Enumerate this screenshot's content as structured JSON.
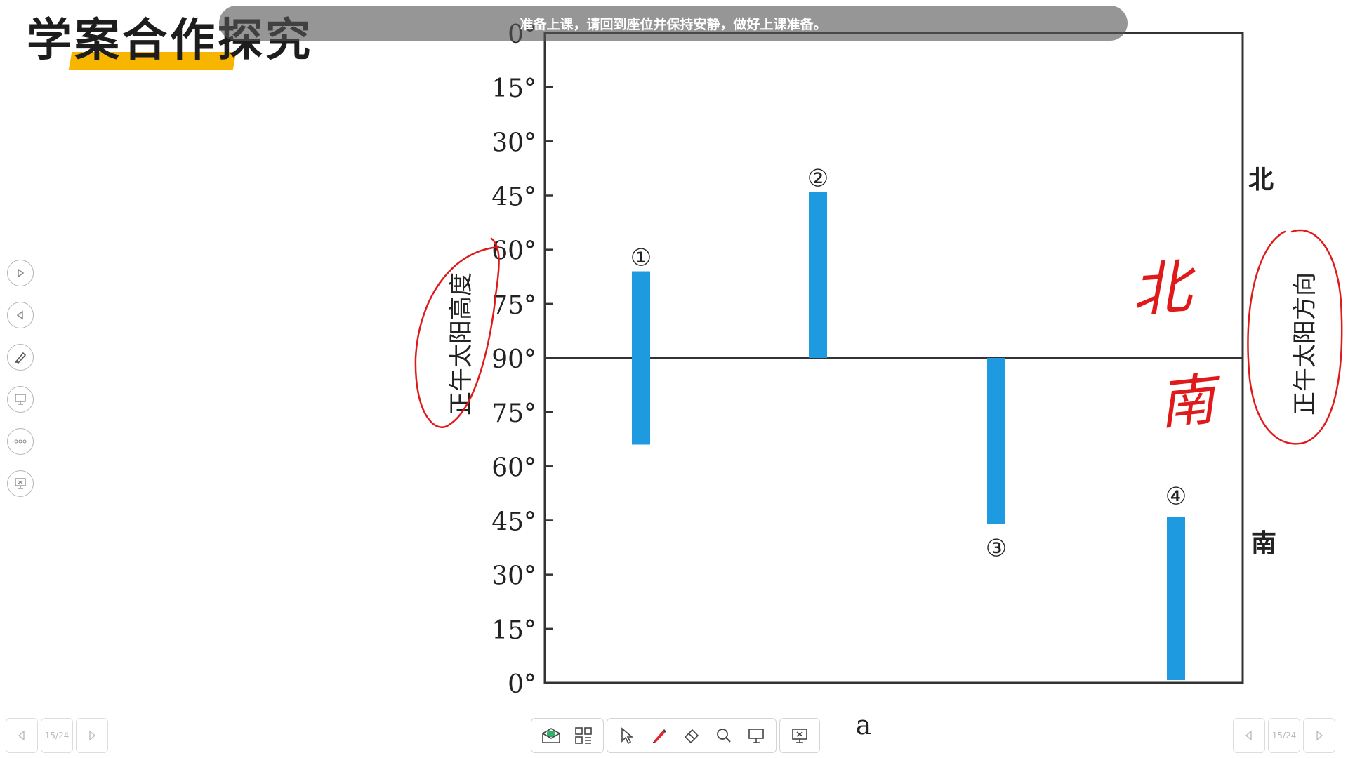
{
  "slide": {
    "title": "学案合作探究"
  },
  "banner": {
    "text": "准备上课，请回到座位并保持安静，做好上课准备。"
  },
  "chart_data": {
    "type": "bar",
    "caption": "a",
    "ylabel_left": "正午太阳高度",
    "ylabel_right": "正午太阳方向",
    "direction_labels": {
      "top": "北",
      "bottom": "南"
    },
    "y_axis_top": [
      "0°",
      "15°",
      "30°",
      "45°",
      "60°",
      "75°",
      "90°"
    ],
    "y_axis_bottom": [
      "75°",
      "60°",
      "45°",
      "30°",
      "15°",
      "0°"
    ],
    "x_positions": [
      1,
      2,
      3,
      4
    ],
    "bars": [
      {
        "label": "①",
        "north_altitude": 66,
        "south_altitude": 66
      },
      {
        "label": "②",
        "north_altitude": 44,
        "south_altitude": null
      },
      {
        "label": "③",
        "north_altitude": null,
        "south_altitude": 44
      },
      {
        "label": "④",
        "north_altitude": null,
        "south_altitude": 46,
        "south_base": 0
      }
    ],
    "annotations": {
      "handwritten_north": "北",
      "handwritten_south": "南"
    },
    "colors": {
      "bar": "#1e9be0",
      "ink": "#e01a1a",
      "axis": "#333333"
    }
  },
  "pager": {
    "left_page": "15/24",
    "right_page": "15/24"
  },
  "left_rail": {
    "icons": [
      "play-icon",
      "back-icon",
      "pen-icon",
      "screen-draw-icon",
      "more-icon",
      "projector-icon"
    ]
  },
  "toolbar": {
    "icons": [
      "message-icon",
      "grid-icon",
      "cursor-icon",
      "pen-icon",
      "eraser-icon",
      "magnifier-icon",
      "board-icon",
      "exit-projection-icon"
    ]
  }
}
